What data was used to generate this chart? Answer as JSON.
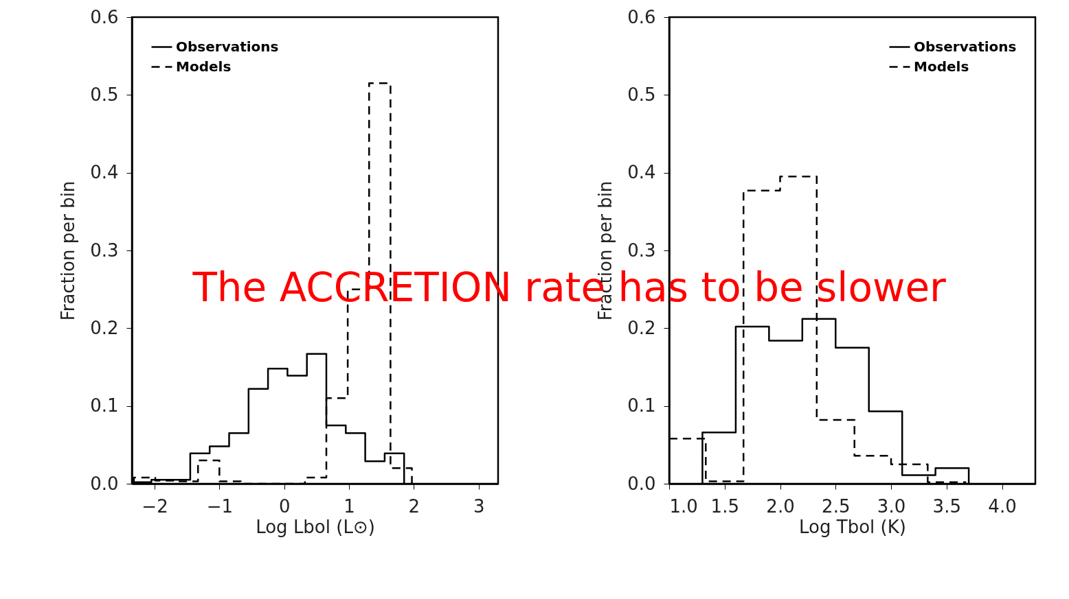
{
  "chart_data": [
    {
      "type": "step",
      "xlabel": "Log Lbol (L⊙)",
      "ylabel": "Fraction per bin",
      "xlim": [
        -2.35,
        3.3
      ],
      "xticks": [
        {
          "value": -2,
          "label": "−2"
        },
        {
          "value": -1,
          "label": "−1"
        },
        {
          "value": 0,
          "label": "0"
        },
        {
          "value": 1,
          "label": "1"
        },
        {
          "value": 2,
          "label": "2"
        },
        {
          "value": 3,
          "label": "3"
        }
      ],
      "ylim": [
        0,
        0.6
      ],
      "yticks": [
        {
          "value": 0,
          "label": "0.0"
        },
        {
          "value": 0.1,
          "label": "0.1"
        },
        {
          "value": 0.2,
          "label": "0.2"
        },
        {
          "value": 0.3,
          "label": "0.3"
        },
        {
          "value": 0.4,
          "label": "0.4"
        },
        {
          "value": 0.5,
          "label": "0.5"
        },
        {
          "value": 0.6,
          "label": "0.6"
        }
      ],
      "legend": "top left",
      "grid": false,
      "annotations": [
        "The ACCRETION rate has to be slower"
      ],
      "series": [
        {
          "name": "Observations",
          "color": "#000000",
          "line_style": "solid",
          "x": [
            -2.35,
            -2.05,
            -1.75,
            -1.45,
            -1.15,
            -0.85,
            -0.55,
            -0.25,
            0.05,
            0.35,
            0.65,
            0.95,
            1.25,
            1.55,
            1.85
          ],
          "values": [
            0.002,
            0.005,
            0.005,
            0.039,
            0.048,
            0.065,
            0.122,
            0.148,
            0.139,
            0.167,
            0.075,
            0.065,
            0.029,
            0.039,
            0
          ]
        },
        {
          "name": "Models",
          "color": "#000000",
          "line_style": "dashed",
          "x": [
            -2.32,
            -2.32,
            -1.99,
            -1.66,
            -1.33,
            -1.0,
            -0.67,
            -0.34,
            -0.01,
            0.32,
            0.65,
            0.98,
            1.31,
            1.64,
            1.97
          ],
          "values": [
            0,
            0.008,
            0.004,
            0.003,
            0.03,
            0.003,
            0.0,
            0.0,
            0.0,
            0.008,
            0.11,
            0.25,
            0.515,
            0.02,
            0
          ]
        }
      ]
    },
    {
      "type": "step",
      "xlabel": "Log Tbol (K)",
      "ylabel": "Fraction per bin",
      "xlim": [
        1.0,
        4.3
      ],
      "xticks": [
        {
          "value": 1.0,
          "label": "1.0"
        },
        {
          "value": 1.5,
          "label": "1.5"
        },
        {
          "value": 2.0,
          "label": "2.0"
        },
        {
          "value": 2.5,
          "label": "2.5"
        },
        {
          "value": 3.0,
          "label": "3.0"
        },
        {
          "value": 3.5,
          "label": "3.5"
        },
        {
          "value": 4.0,
          "label": "4.0"
        }
      ],
      "ylim": [
        0,
        0.6
      ],
      "yticks": [
        {
          "value": 0,
          "label": "0.0"
        },
        {
          "value": 0.1,
          "label": "0.1"
        },
        {
          "value": 0.2,
          "label": "0.2"
        },
        {
          "value": 0.3,
          "label": "0.3"
        },
        {
          "value": 0.4,
          "label": "0.4"
        },
        {
          "value": 0.5,
          "label": "0.5"
        },
        {
          "value": 0.6,
          "label": "0.6"
        }
      ],
      "legend": "top right",
      "grid": false,
      "series": [
        {
          "name": "Observations",
          "color": "#000000",
          "line_style": "solid",
          "x": [
            1.3,
            1.3,
            1.6,
            1.9,
            2.2,
            2.5,
            2.8,
            3.1,
            3.4,
            3.7
          ],
          "values": [
            0,
            0.066,
            0.202,
            0.184,
            0.212,
            0.175,
            0.093,
            0.011,
            0.02,
            0
          ]
        },
        {
          "name": "Models",
          "color": "#000000",
          "line_style": "dashed",
          "x": [
            1.0,
            1.33,
            1.67,
            2.0,
            2.33,
            2.67,
            3.0,
            3.33,
            3.67
          ],
          "values": [
            0.058,
            0.003,
            0.377,
            0.395,
            0.082,
            0.036,
            0.025,
            0.002,
            0
          ]
        }
      ]
    }
  ]
}
